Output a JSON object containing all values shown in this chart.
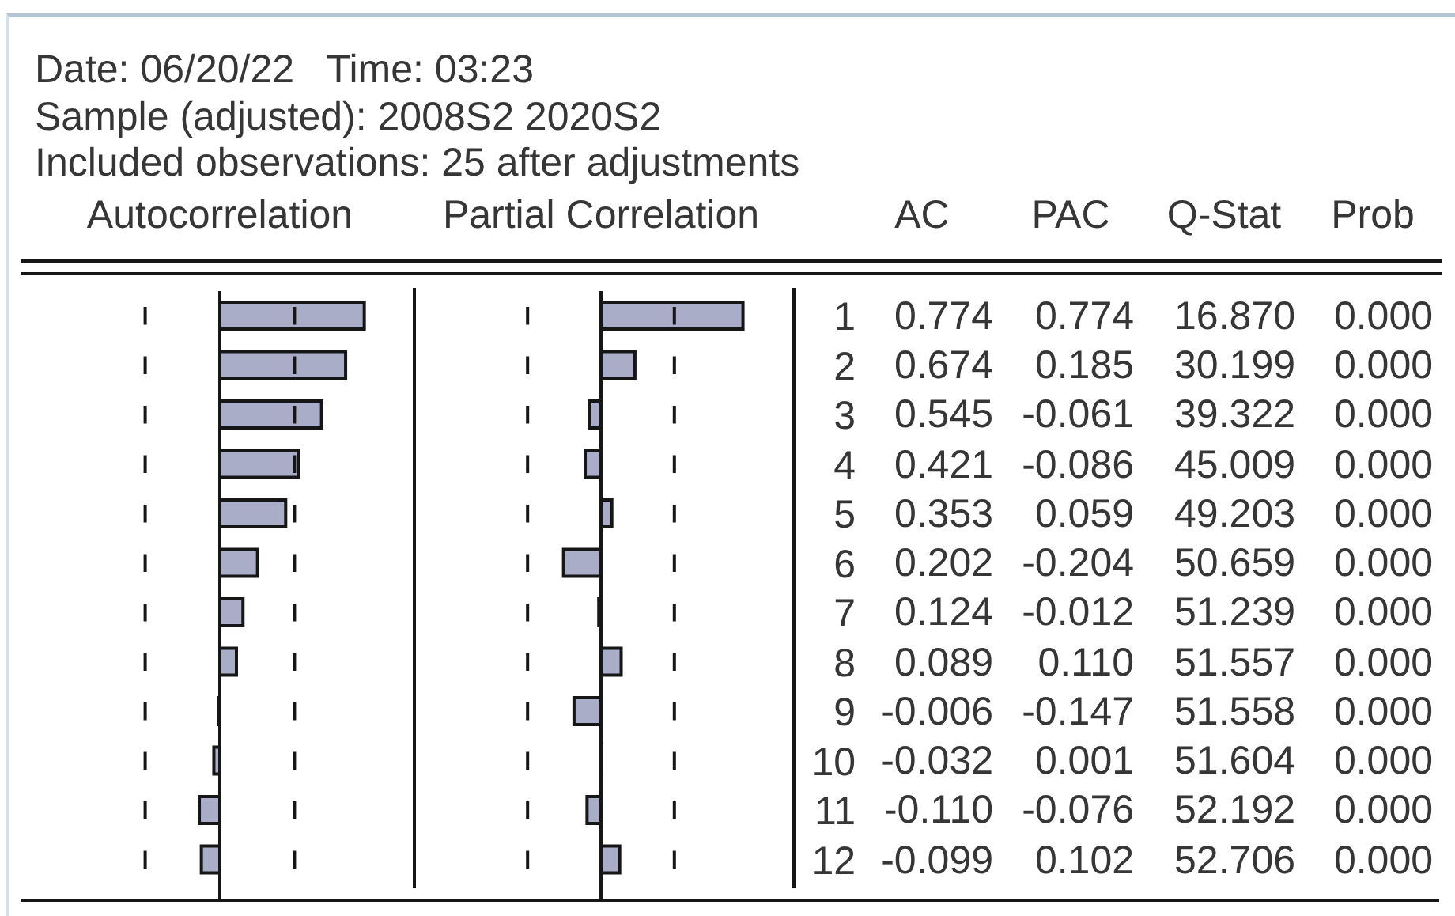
{
  "chart_data": [
    {
      "type": "bar",
      "orientation": "horizontal",
      "title": "Autocorrelation",
      "annotations": [
        "Date: 06/20/22   Time: 03:23",
        "Sample (adjusted): 2008S2 2020S2",
        "Included observations: 25 after adjustments"
      ],
      "categories": [
        "1",
        "2",
        "3",
        "4",
        "5",
        "6",
        "7",
        "8",
        "9",
        "10",
        "11",
        "12"
      ],
      "color": "#a9adc7",
      "values": [
        0.774,
        0.674,
        0.545,
        0.421,
        0.353,
        0.202,
        0.124,
        0.089,
        -0.006,
        -0.032,
        -0.11,
        -0.099
      ],
      "value_labels": [
        "0.774",
        "0.674",
        "0.545",
        "0.421",
        "0.353",
        "0.202",
        "0.124",
        "0.089",
        "-0.006",
        "-0.032",
        "-0.110",
        "-0.099"
      ],
      "xlim": [
        -1,
        1
      ],
      "tick_labels": false,
      "ref_lines": [
        {
          "axis": "x",
          "value": -0.4,
          "line_style": "dashed"
        },
        {
          "axis": "x",
          "value": 0.4,
          "line_style": "dashed"
        }
      ]
    },
    {
      "type": "bar",
      "orientation": "horizontal",
      "title": "Partial Correlation",
      "categories": [
        "1",
        "2",
        "3",
        "4",
        "5",
        "6",
        "7",
        "8",
        "9",
        "10",
        "11",
        "12"
      ],
      "color": "#a9adc7",
      "values": [
        0.774,
        0.185,
        -0.061,
        -0.086,
        0.059,
        -0.204,
        -0.012,
        0.11,
        -0.147,
        0.001,
        -0.076,
        0.102
      ],
      "value_labels": [
        "0.774",
        "0.185",
        "-0.061",
        "-0.086",
        "0.059",
        "-0.204",
        "-0.012",
        "0.110",
        "-0.147",
        "0.001",
        "-0.076",
        "0.102"
      ],
      "xlim": [
        -1,
        1
      ],
      "tick_labels": "y",
      "ref_lines": [
        {
          "axis": "x",
          "value": -0.4,
          "line_style": "dashed"
        },
        {
          "axis": "x",
          "value": 0.4,
          "line_style": "dashed"
        }
      ]
    },
    {
      "type": "other",
      "annotations": [
        "AC",
        "PAC",
        "Q-Stat",
        "Prob",
        "16.870",
        "0.000",
        "30.199",
        "0.000",
        "39.322",
        "0.000",
        "45.009",
        "0.000",
        "49.203",
        "0.000",
        "50.659",
        "0.000",
        "51.239",
        "0.000",
        "51.557",
        "0.000",
        "51.558",
        "0.000",
        "51.604",
        "0.000",
        "52.192",
        "0.000",
        "52.706",
        "0.000"
      ]
    }
  ]
}
